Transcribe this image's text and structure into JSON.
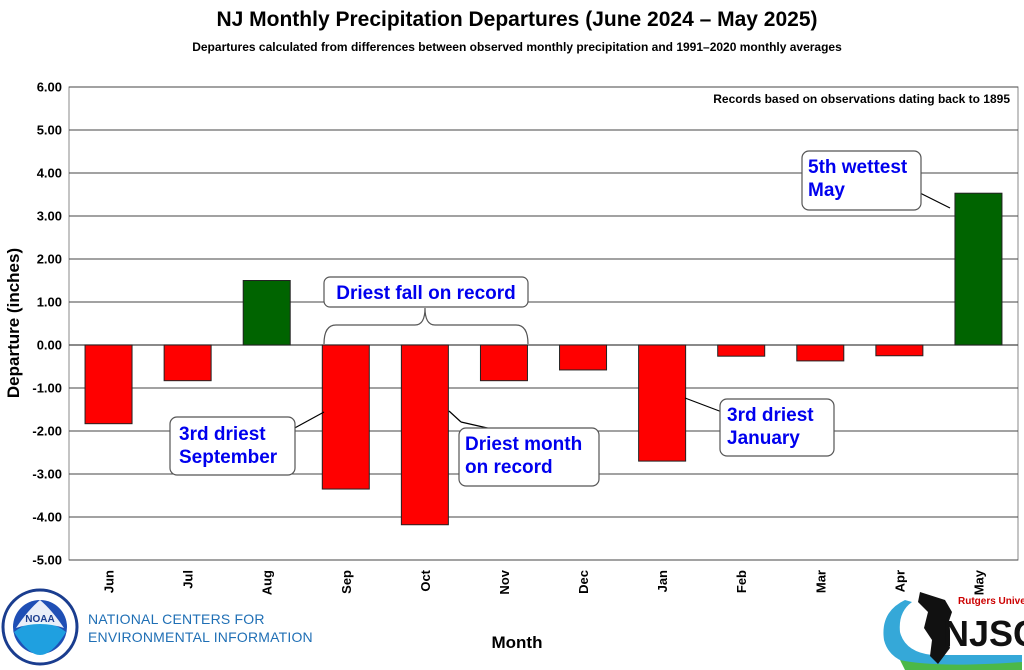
{
  "chart_data": {
    "type": "bar",
    "title": "NJ Monthly Precipitation Departures (June 2024 – May 2025)",
    "subtitle": "Departures calculated from differences between observed monthly precipitation and 1991–2020 monthly  averages",
    "xlabel": "Month",
    "ylabel": "Departure (inches)",
    "ylim": [
      -5,
      6
    ],
    "yticks": [
      "6.00",
      "5.00",
      "4.00",
      "3.00",
      "2.00",
      "1.00",
      "0.00",
      "-1.00",
      "-2.00",
      "-3.00",
      "-4.00",
      "-5.00"
    ],
    "grid": true,
    "categories": [
      "Jun",
      "Jul",
      "Aug",
      "Sep",
      "Oct",
      "Nov",
      "Dec",
      "Jan",
      "Feb",
      "Mar",
      "Apr",
      "May"
    ],
    "values": [
      -1.83,
      -0.83,
      1.5,
      -3.35,
      -4.18,
      -0.83,
      -0.58,
      -2.7,
      -0.26,
      -0.37,
      -0.25,
      3.53
    ],
    "positive_color": "#006400",
    "negative_color": "#ff0000",
    "note": "Records based on observations dating back to 1895",
    "annotations": [
      {
        "text": [
          "3rd driest",
          "September"
        ],
        "month": "Sep"
      },
      {
        "text": [
          "Driest month",
          "on record"
        ],
        "month": "Oct"
      },
      {
        "text": [
          "3rd driest",
          "January"
        ],
        "month": "Jan"
      },
      {
        "text": [
          "5th wettest",
          "May"
        ],
        "month": "May"
      },
      {
        "text": [
          "Driest fall on record"
        ],
        "months": [
          "Sep",
          "Nov"
        ]
      }
    ]
  },
  "logos": {
    "noaa_badge": "NOAA",
    "noaa_text_line1": "NATIONAL CENTERS FOR",
    "noaa_text_line2": "ENVIRONMENTAL INFORMATION",
    "njsc_small": "Rutgers University",
    "njsc_big": "NJSC"
  }
}
